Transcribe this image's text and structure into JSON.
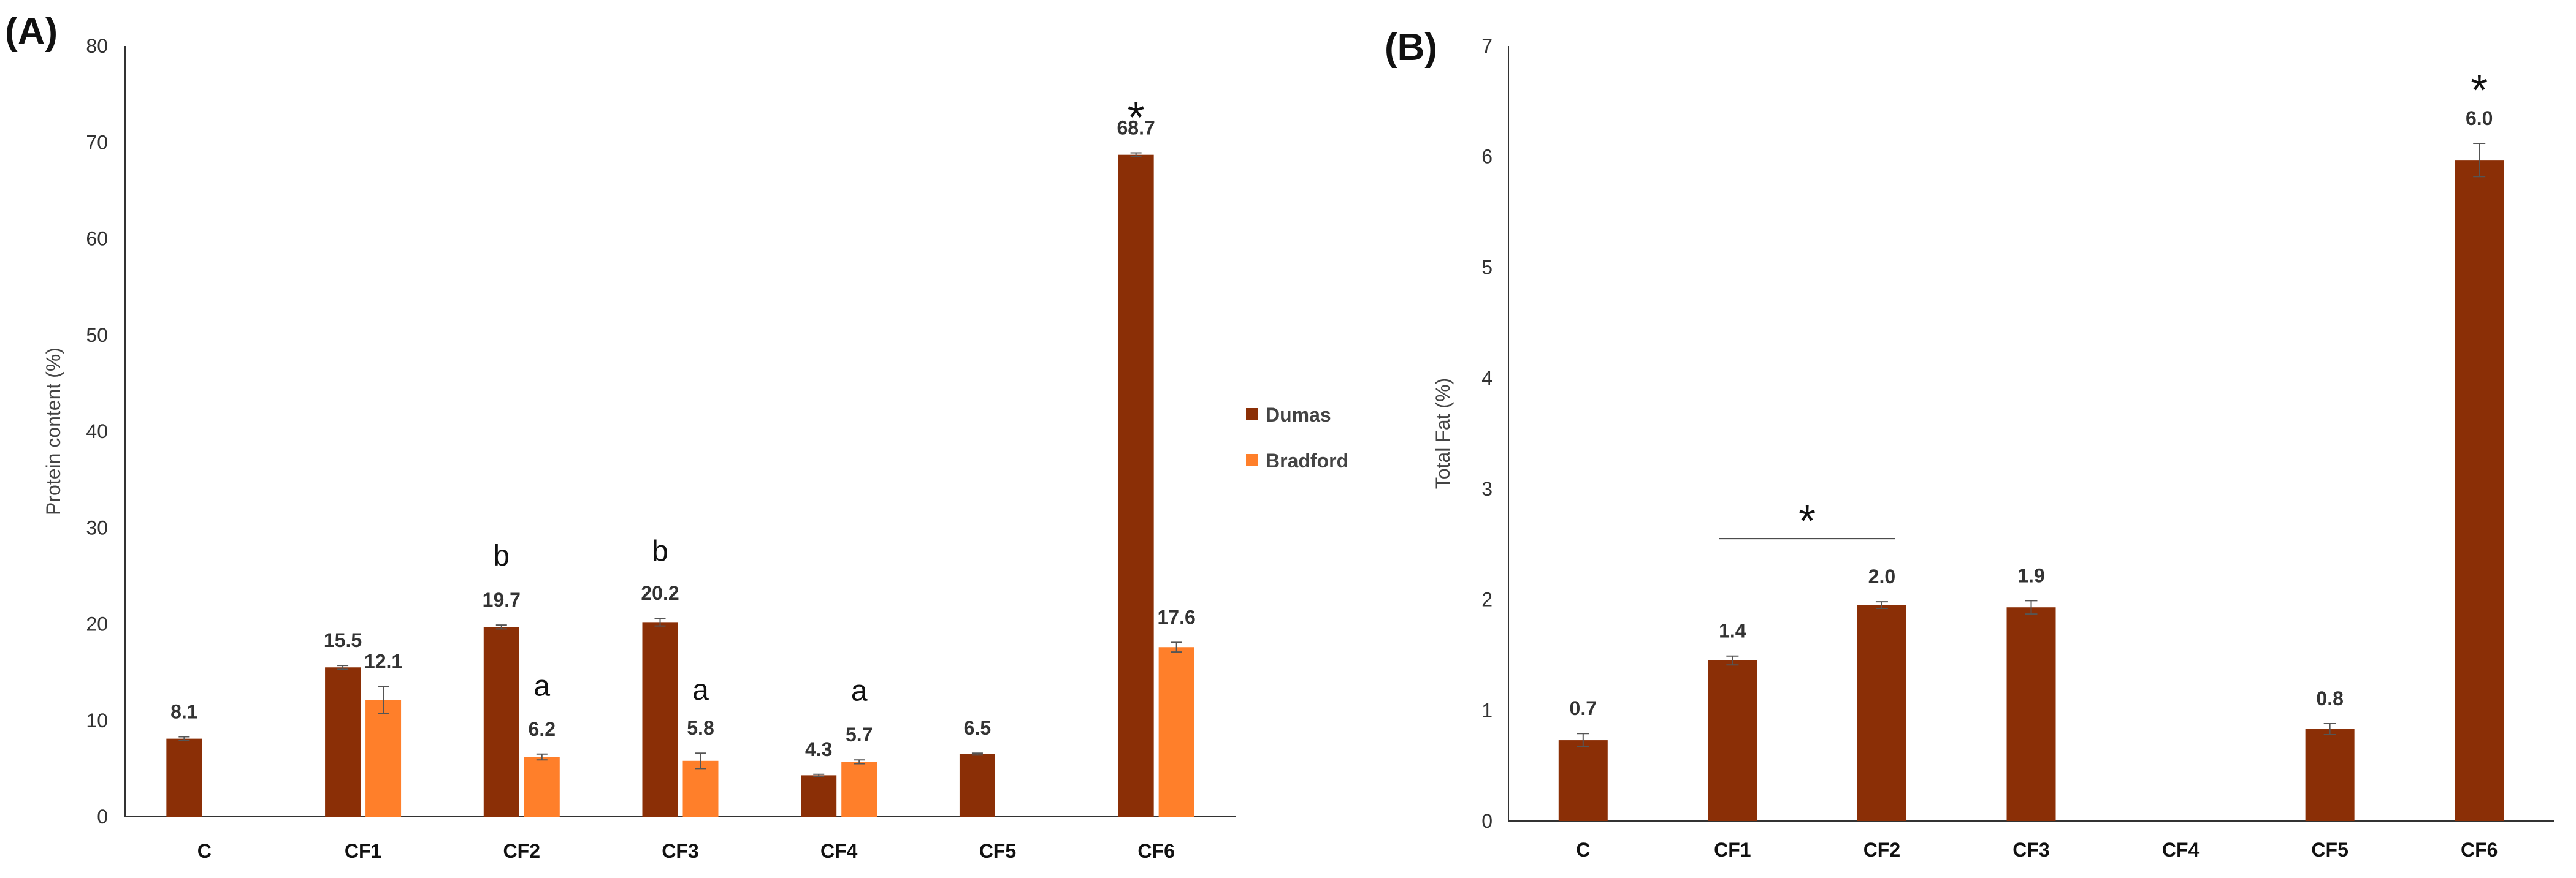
{
  "colors": {
    "dumas": "#8B2F06",
    "bradford": "#FF7F2A",
    "axis": "#333333",
    "errorbar": "#555555"
  },
  "chart_data": [
    {
      "panel": "(A)",
      "type": "bar",
      "ylabel": "Protein content (%)",
      "xlabel": "",
      "ylim": [
        0,
        80
      ],
      "yticks": [
        0,
        10,
        20,
        30,
        40,
        50,
        60,
        70,
        80
      ],
      "categories": [
        "C",
        "CF1",
        "CF2",
        "CF3",
        "CF4",
        "CF5",
        "CF6"
      ],
      "legend_position": "right",
      "series": [
        {
          "name": "Dumas",
          "values": [
            8.1,
            15.5,
            19.7,
            20.2,
            4.3,
            6.5,
            68.7
          ],
          "labels": [
            "8.1",
            "15.5",
            "19.7",
            "20.2",
            "4.3",
            "6.5",
            "68.7"
          ],
          "errors": [
            0.2,
            0.2,
            0.2,
            0.4,
            0.1,
            0.1,
            0.2
          ]
        },
        {
          "name": "Bradford",
          "values": [
            null,
            12.1,
            6.2,
            5.8,
            5.7,
            null,
            17.6
          ],
          "labels": [
            "",
            "12.1",
            "6.2",
            "5.8",
            "5.7",
            "",
            "17.6"
          ],
          "errors": [
            null,
            1.4,
            0.3,
            0.8,
            0.2,
            null,
            0.5
          ]
        }
      ],
      "letters": [
        {
          "category": "CF2",
          "series": "Dumas",
          "text": "b"
        },
        {
          "category": "CF3",
          "series": "Dumas",
          "text": "b"
        },
        {
          "category": "CF2",
          "series": "Bradford",
          "text": "a"
        },
        {
          "category": "CF3",
          "series": "Bradford",
          "text": "a"
        },
        {
          "category": "CF4",
          "series": "Bradford",
          "text": "a"
        }
      ],
      "stars": [
        {
          "category": "CF6",
          "series": "Dumas",
          "text": "*"
        }
      ]
    },
    {
      "panel": "(B)",
      "type": "bar",
      "ylabel": "Total Fat (%)",
      "xlabel": "",
      "ylim": [
        0,
        7
      ],
      "yticks": [
        0,
        1,
        2,
        3,
        4,
        5,
        6,
        7
      ],
      "categories": [
        "C",
        "CF1",
        "CF2",
        "CF3",
        "CF4",
        "CF5",
        "CF6"
      ],
      "series": [
        {
          "name": "Total Fat",
          "values": [
            0.73,
            1.45,
            1.95,
            1.93,
            null,
            0.83,
            5.97
          ],
          "labels": [
            "0.7",
            "1.4",
            "2.0",
            "1.9",
            "",
            "0.8",
            "6.0"
          ],
          "errors": [
            0.06,
            0.04,
            0.03,
            0.06,
            null,
            0.05,
            0.15
          ]
        }
      ],
      "stars": [
        {
          "category": "CF6",
          "series": "Total Fat",
          "text": "*"
        }
      ],
      "bracket": {
        "from": "CF1",
        "to": "CF2",
        "text": "*"
      }
    }
  ]
}
